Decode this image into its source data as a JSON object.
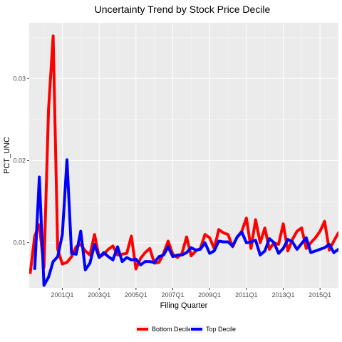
{
  "chart_data": {
    "type": "line",
    "title": "Uncertainty Trend by Stock Price Decile",
    "xlabel": "Filing Quarter",
    "ylabel": "PCT_UNC",
    "x_start": 1999.25,
    "x_step": 0.25,
    "xlim": [
      1999.2,
      2016.0
    ],
    "ylim": [
      0.0045,
      0.0368
    ],
    "xticks": [
      {
        "value": 2001.0,
        "label": "2001Q1"
      },
      {
        "value": 2003.0,
        "label": "2003Q1"
      },
      {
        "value": 2005.0,
        "label": "2005Q1"
      },
      {
        "value": 2007.0,
        "label": "2007Q1"
      },
      {
        "value": 2009.0,
        "label": "2009Q1"
      },
      {
        "value": 2011.0,
        "label": "2011Q1"
      },
      {
        "value": 2013.0,
        "label": "2013Q1"
      },
      {
        "value": 2015.0,
        "label": "2015Q1"
      }
    ],
    "yticks": [
      {
        "value": 0.01,
        "label": "0.01"
      },
      {
        "value": 0.02,
        "label": "0.02"
      },
      {
        "value": 0.03,
        "label": "0.03"
      }
    ],
    "grid": true,
    "legend_position": "bottom",
    "series": [
      {
        "name": "Bottom Decile",
        "color": "#ff0000",
        "values": [
          0.0062,
          0.0108,
          0.0122,
          0.007,
          0.0262,
          0.0352,
          0.0092,
          0.0074,
          0.0076,
          0.0083,
          0.0095,
          0.0098,
          0.009,
          0.0085,
          0.011,
          0.0082,
          0.0086,
          0.0092,
          0.0096,
          0.0085,
          0.0086,
          0.0087,
          0.0108,
          0.0068,
          0.0081,
          0.0088,
          0.0093,
          0.0075,
          0.0076,
          0.0087,
          0.0102,
          0.0086,
          0.0082,
          0.0087,
          0.0107,
          0.0084,
          0.009,
          0.0093,
          0.011,
          0.0106,
          0.0093,
          0.0116,
          0.0112,
          0.011,
          0.0095,
          0.0107,
          0.0114,
          0.013,
          0.0093,
          0.0128,
          0.01,
          0.0118,
          0.0092,
          0.01,
          0.0098,
          0.0123,
          0.009,
          0.0104,
          0.0114,
          0.0118,
          0.0093,
          0.01,
          0.0106,
          0.0114,
          0.0126,
          0.0091,
          0.0102,
          0.0112,
          0.0103,
          0.0092
        ]
      },
      {
        "name": "Top Decile",
        "color": "#0000ff",
        "values": [
          null,
          0.0067,
          0.018,
          0.0048,
          0.0058,
          0.0077,
          0.0083,
          0.011,
          0.0201,
          0.0087,
          0.0086,
          0.0114,
          0.0067,
          0.0075,
          0.0098,
          0.0082,
          0.0088,
          0.0083,
          0.0079,
          0.0095,
          0.0077,
          0.0082,
          0.0079,
          0.008,
          0.0073,
          0.0077,
          0.0077,
          0.0076,
          0.0083,
          0.0085,
          0.0095,
          0.0083,
          0.0085,
          0.0085,
          0.0088,
          0.0094,
          0.0091,
          0.0092,
          0.01,
          0.0087,
          0.009,
          0.0102,
          0.0101,
          0.0101,
          0.0096,
          0.0107,
          0.0113,
          0.01,
          0.0101,
          0.0103,
          0.0085,
          0.009,
          0.0105,
          0.01,
          0.0087,
          0.0093,
          0.0104,
          0.0101,
          0.0092,
          0.0099,
          0.0106,
          0.0088,
          0.009,
          0.0092,
          0.0094,
          0.0098,
          0.0088,
          0.0092,
          0.0082
        ]
      }
    ]
  }
}
